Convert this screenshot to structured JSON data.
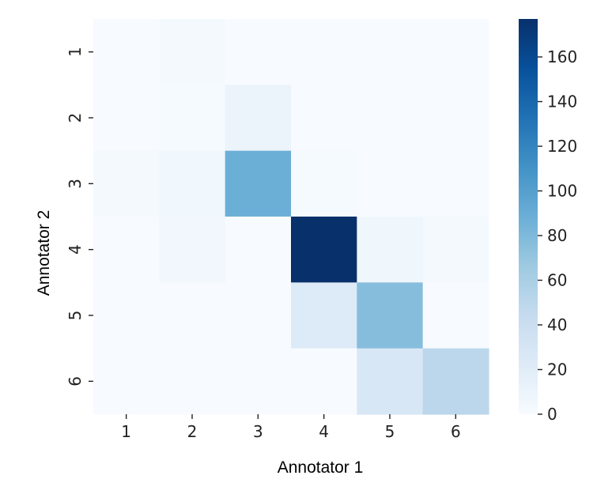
{
  "chart_data": {
    "type": "heatmap",
    "title": "",
    "xlabel": "Annotator 1",
    "ylabel": "Annotator 2",
    "x_categories": [
      "1",
      "2",
      "3",
      "4",
      "5",
      "6"
    ],
    "y_categories": [
      "1",
      "2",
      "3",
      "4",
      "5",
      "6"
    ],
    "values": [
      [
        0,
        3,
        0,
        0,
        0,
        0
      ],
      [
        0,
        2,
        10,
        0,
        0,
        0
      ],
      [
        3,
        6,
        88,
        2,
        0,
        0
      ],
      [
        0,
        5,
        0,
        177,
        7,
        3
      ],
      [
        0,
        0,
        0,
        23,
        77,
        0
      ],
      [
        0,
        0,
        0,
        0,
        28,
        50
      ]
    ],
    "colormap": "Blues",
    "colorbar": {
      "min": 0,
      "max": 177,
      "ticks": [
        "0",
        "20",
        "40",
        "60",
        "80",
        "100",
        "120",
        "140",
        "160"
      ],
      "low_color": "#f7fbff",
      "high_color": "#08306b"
    },
    "grid": false
  }
}
